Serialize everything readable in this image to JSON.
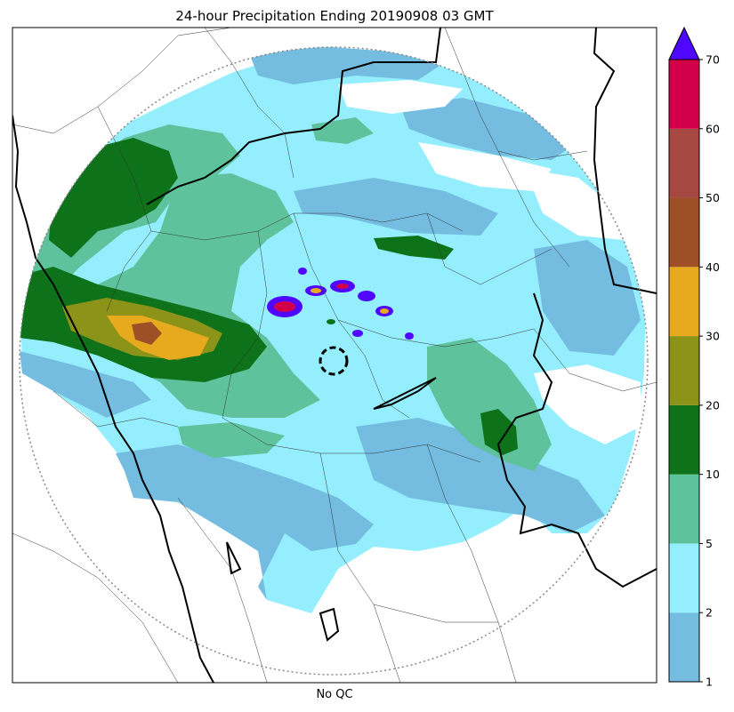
{
  "map": {
    "title": "24-hour Precipitation Ending 20190908 03 GMT",
    "footer_label": "No QC"
  },
  "colorbar": {
    "extend": "max",
    "bins": [
      {
        "from": 1,
        "to": 2,
        "color": "#74bde1"
      },
      {
        "from": 2,
        "to": 5,
        "color": "#95eefe"
      },
      {
        "from": 5,
        "to": 10,
        "color": "#5ec39c"
      },
      {
        "from": 10,
        "to": 20,
        "color": "#0d7219"
      },
      {
        "from": 20,
        "to": 30,
        "color": "#8b9418"
      },
      {
        "from": 30,
        "to": 40,
        "color": "#e7a91e"
      },
      {
        "from": 40,
        "to": 50,
        "color": "#9e4f25"
      },
      {
        "from": 50,
        "to": 60,
        "color": "#a54841"
      },
      {
        "from": 60,
        "to": 70,
        "color": "#d20048"
      }
    ],
    "extend_color": "#5007ff",
    "tick_labels": [
      "1",
      "2",
      "5",
      "10",
      "20",
      "30",
      "40",
      "50",
      "60",
      "70"
    ]
  },
  "colors": {
    "radar_coverage_ring": "#888888",
    "state_border": "#000000",
    "district_border": "#333333",
    "radar_site": "#000000"
  }
}
